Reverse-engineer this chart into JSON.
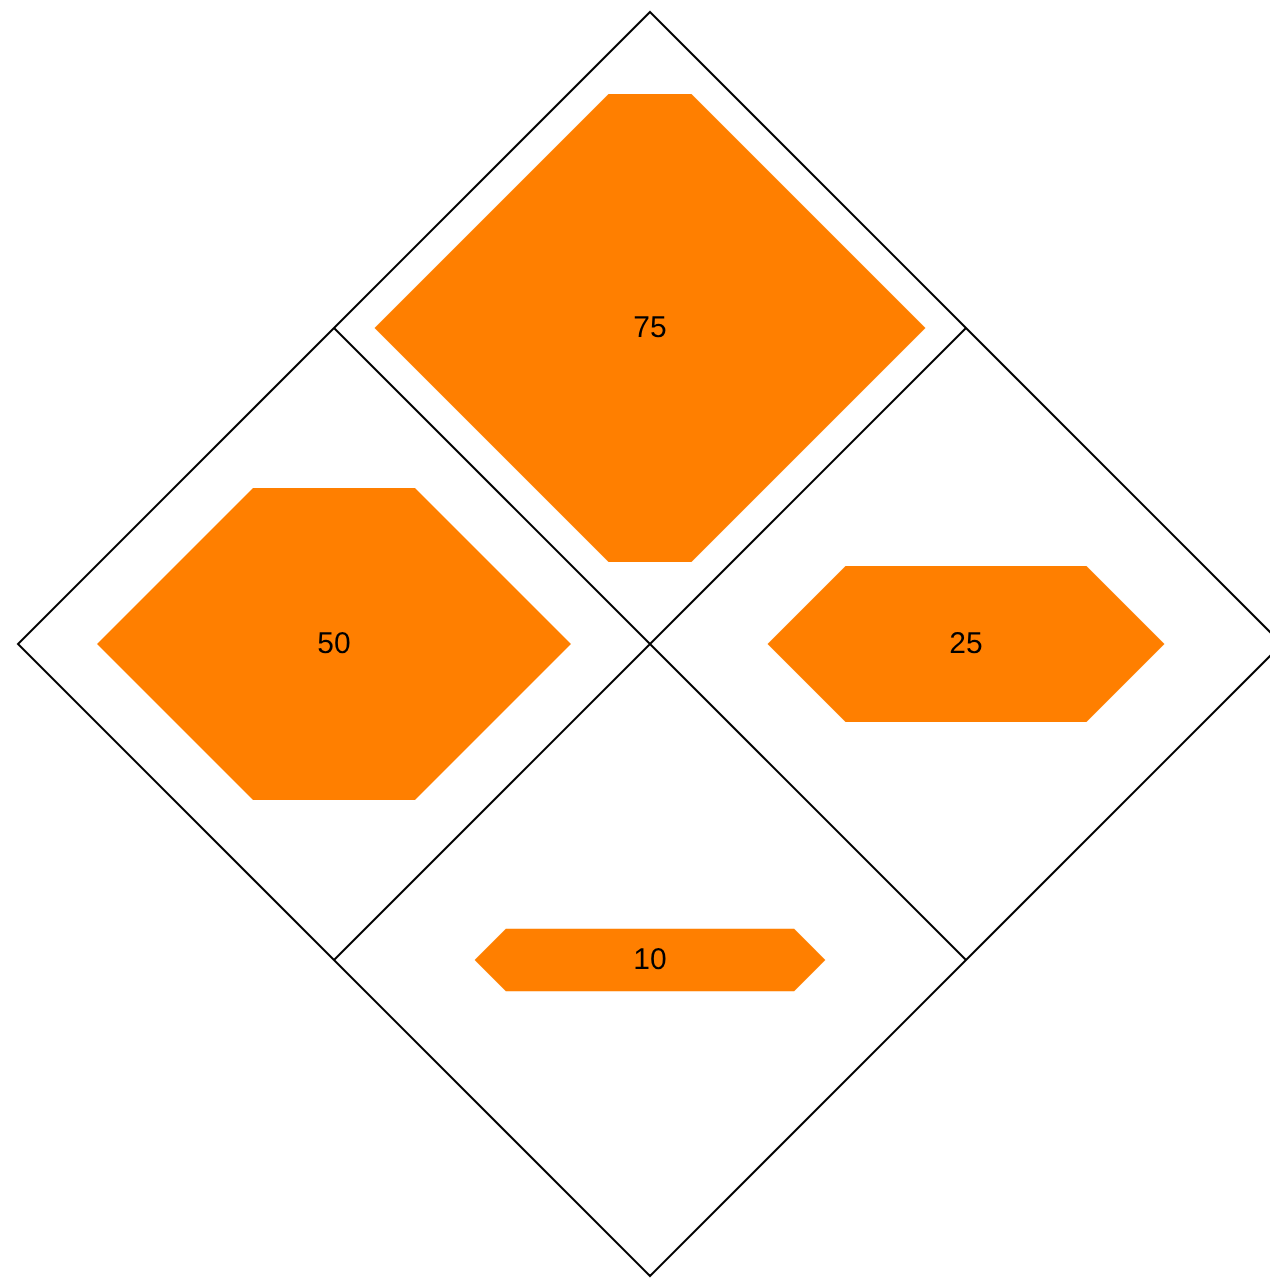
{
  "chart_data": {
    "type": "other",
    "categories": [
      null,
      null,
      null,
      null
    ],
    "values": [
      75,
      50,
      25,
      10
    ],
    "color": "#ff7f00",
    "data_labels": true
  }
}
